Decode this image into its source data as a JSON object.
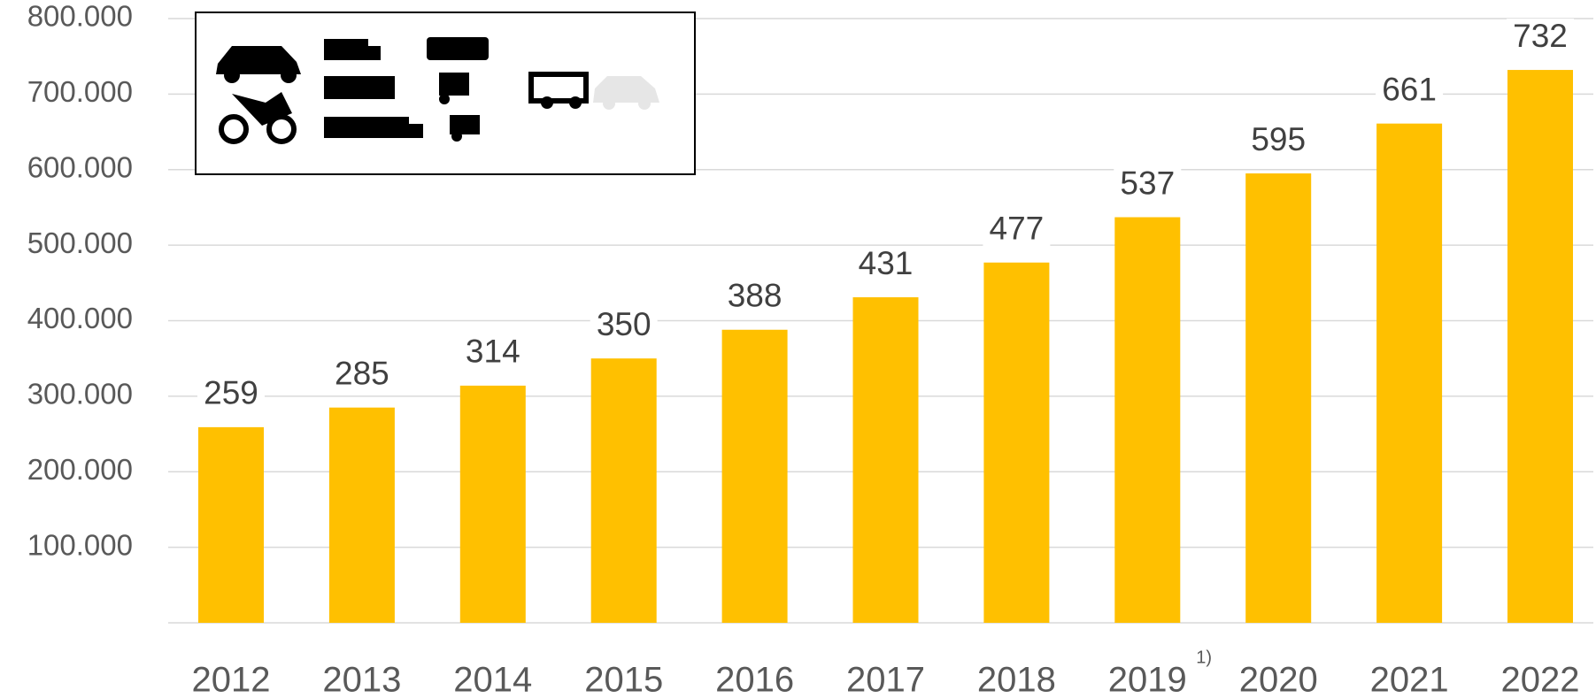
{
  "chart_data": {
    "type": "bar",
    "categories": [
      "2012",
      "2013",
      "2014",
      "2015",
      "2016",
      "2017",
      "2018",
      "2019",
      "2020",
      "2021",
      "2022"
    ],
    "values": [
      259000,
      285000,
      314000,
      350000,
      388000,
      431000,
      477000,
      537000,
      595000,
      661000,
      732000
    ],
    "value_labels": [
      "259",
      "285",
      "314",
      "350",
      "388",
      "431",
      "477",
      "537",
      "595",
      "661",
      "732"
    ],
    "color": "#ffc000",
    "ylim": [
      0,
      800000
    ],
    "yticks": [
      {
        "value": 100000,
        "label": "100.000"
      },
      {
        "value": 200000,
        "label": "200.000"
      },
      {
        "value": 300000,
        "label": "300.000"
      },
      {
        "value": 400000,
        "label": "400.000"
      },
      {
        "value": 500000,
        "label": "500.000"
      },
      {
        "value": 600000,
        "label": "600.000"
      },
      {
        "value": 700000,
        "label": "700.000"
      },
      {
        "value": 800000,
        "label": "800.000"
      }
    ],
    "grid": true,
    "footnote_marker": {
      "category_index": 7,
      "text": "1)"
    }
  }
}
